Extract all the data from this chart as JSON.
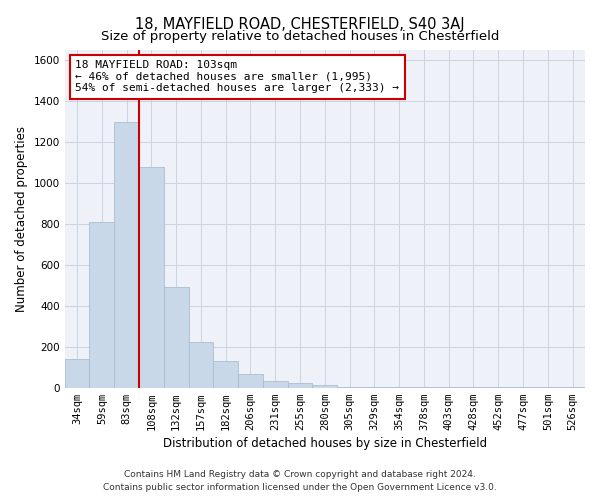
{
  "title": "18, MAYFIELD ROAD, CHESTERFIELD, S40 3AJ",
  "subtitle": "Size of property relative to detached houses in Chesterfield",
  "xlabel": "Distribution of detached houses by size in Chesterfield",
  "ylabel": "Number of detached properties",
  "categories": [
    "34sqm",
    "59sqm",
    "83sqm",
    "108sqm",
    "132sqm",
    "157sqm",
    "182sqm",
    "206sqm",
    "231sqm",
    "255sqm",
    "280sqm",
    "305sqm",
    "329sqm",
    "354sqm",
    "378sqm",
    "403sqm",
    "428sqm",
    "452sqm",
    "477sqm",
    "501sqm",
    "526sqm"
  ],
  "values": [
    140,
    810,
    1300,
    1080,
    490,
    225,
    130,
    65,
    35,
    22,
    12,
    5,
    5,
    5,
    5,
    5,
    3,
    3,
    3,
    3,
    3
  ],
  "bar_color": "#c8d8e8",
  "bar_edge_color": "#a0b8cc",
  "vline_color": "#cc0000",
  "annotation_text_line1": "18 MAYFIELD ROAD: 103sqm",
  "annotation_text_line2": "← 46% of detached houses are smaller (1,995)",
  "annotation_text_line3": "54% of semi-detached houses are larger (2,333) →",
  "annotation_box_color": "#cc0000",
  "ylim": [
    0,
    1650
  ],
  "yticks": [
    0,
    200,
    400,
    600,
    800,
    1000,
    1200,
    1400,
    1600
  ],
  "grid_color": "#c8d4e0",
  "background_color": "#eef2f8",
  "footer_line1": "Contains HM Land Registry data © Crown copyright and database right 2024.",
  "footer_line2": "Contains public sector information licensed under the Open Government Licence v3.0.",
  "title_fontsize": 10.5,
  "subtitle_fontsize": 9.5,
  "tick_fontsize": 7.5,
  "ylabel_fontsize": 8.5,
  "xlabel_fontsize": 8.5,
  "annotation_fontsize": 8,
  "footer_fontsize": 6.5
}
